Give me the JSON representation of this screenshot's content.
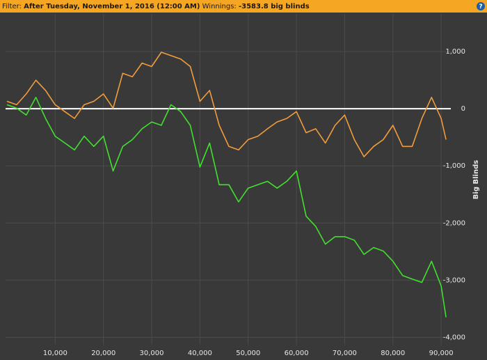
{
  "header": {
    "filter_label": "Filter:",
    "filter_value": "After Tuesday, November 1, 2016 (12:00 AM)",
    "winnings_label": "Winnings:",
    "winnings_value": "-3583.8 big blinds",
    "help": "?"
  },
  "chart_data": {
    "type": "line",
    "y_label": "Big Blinds",
    "x": [
      0,
      2000,
      4000,
      6000,
      8000,
      10000,
      12000,
      14000,
      16000,
      18000,
      20000,
      22000,
      24000,
      26000,
      28000,
      30000,
      32000,
      34000,
      36000,
      38000,
      40000,
      42000,
      44000,
      46000,
      48000,
      50000,
      52000,
      54000,
      56000,
      58000,
      60000,
      62000,
      64000,
      66000,
      68000,
      70000,
      72000,
      74000,
      76000,
      78000,
      80000,
      82000,
      84000,
      86000,
      88000,
      90000,
      91000
    ],
    "series": [
      {
        "color": "#f39c3c",
        "values": [
          130,
          70,
          260,
          500,
          320,
          70,
          -50,
          -170,
          70,
          130,
          260,
          10,
          620,
          560,
          800,
          740,
          990,
          930,
          870,
          740,
          130,
          320,
          -290,
          -660,
          -720,
          -540,
          -480,
          -350,
          -230,
          -170,
          -50,
          -420,
          -350,
          -600,
          -290,
          -110,
          -540,
          -840,
          -660,
          -540,
          -290,
          -660,
          -660,
          -170,
          200,
          -170,
          -540
        ]
      },
      {
        "color": "#42e02f",
        "values": [
          70,
          10,
          -110,
          200,
          -170,
          -480,
          -600,
          -720,
          -480,
          -660,
          -480,
          -1090,
          -660,
          -540,
          -350,
          -230,
          -290,
          70,
          -50,
          -290,
          -1020,
          -600,
          -1330,
          -1330,
          -1630,
          -1390,
          -1330,
          -1270,
          -1390,
          -1270,
          -1090,
          -1880,
          -2060,
          -2370,
          -2240,
          -2240,
          -2300,
          -2550,
          -2430,
          -2490,
          -2670,
          -2920,
          -2980,
          -3040,
          -2670,
          -3100,
          -3650
        ]
      }
    ],
    "xlim": [
      0,
      92000
    ],
    "ylim": [
      -4130,
      1660
    ],
    "xticks": [
      {
        "value": 10000,
        "label": "10,000"
      },
      {
        "value": 20000,
        "label": "20,000"
      },
      {
        "value": 30000,
        "label": "30,000"
      },
      {
        "value": 40000,
        "label": "40,000"
      },
      {
        "value": 50000,
        "label": "50,000"
      },
      {
        "value": 60000,
        "label": "60,000"
      },
      {
        "value": 70000,
        "label": "70,000"
      },
      {
        "value": 80000,
        "label": "80,000"
      },
      {
        "value": 90000,
        "label": "90,000"
      }
    ],
    "yticks": [
      {
        "value": 1000,
        "label": "1,000"
      },
      0,
      {
        "value": -1000,
        "label": "-1,000"
      },
      {
        "value": -2000,
        "label": "-2,000"
      },
      {
        "value": -3000,
        "label": "-3,000"
      },
      {
        "value": -4000,
        "label": "-4,000"
      }
    ],
    "grid": true,
    "zero_line": true
  }
}
